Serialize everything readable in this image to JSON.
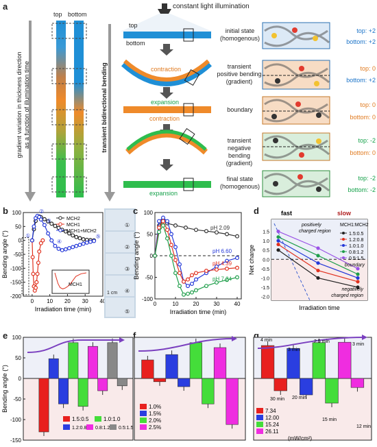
{
  "panel_a": {
    "label": "a",
    "strip_top": "top",
    "strip_bottom": "bottom",
    "left_axis": "gradient variation in thickness direction as a function of illumination time",
    "left_axis_line1": "gradient variation in thickness direction",
    "left_axis_line2": "as a function of illumination time",
    "mid_axis": "transient bidirectional bending",
    "light": "constant light illumination",
    "film_top": "top",
    "film_bottom": "bottom",
    "contraction": "contraction",
    "expansion": "expansion",
    "states": [
      {
        "name1": "initial state",
        "name2": "(homogenous)",
        "top": "top: +2",
        "bottom": "bottom: +2"
      },
      {
        "name1": "transient positive bending",
        "name2": "(gradient)",
        "top": "top: 0",
        "bottom": "bottom: +2"
      },
      {
        "name1": "boundary",
        "name2": "",
        "top": "top: 0",
        "bottom": "bottom: 0"
      },
      {
        "name1": "transient negative bending",
        "name2": "(gradient)",
        "top": "top: -2",
        "bottom": "bottom: 0"
      },
      {
        "name1": "final state",
        "name2": "(homogenous)",
        "top": "top: -2",
        "bottom": "bottom: -2"
      }
    ],
    "positive_word": "positive",
    "negative_word": "negative",
    "colors": {
      "blue": "#1f8fd6",
      "orange": "#ef8a2a",
      "green": "#2ebd4d"
    }
  },
  "chart_data": [
    {
      "panel": "b",
      "type": "line",
      "xlabel": "Irradiation time (min)",
      "ylabel": "Bending angle (°)",
      "xlim": [
        -5,
        40
      ],
      "ylim": [
        -200,
        100
      ],
      "xticks": [
        "0",
        "10",
        "20",
        "30",
        "40"
      ],
      "yticks": [
        "100",
        "50",
        "0",
        "-50",
        "-100",
        "-150",
        "-200"
      ],
      "series": [
        {
          "name": "MCH2",
          "color": "#222222",
          "x": [
            0,
            1,
            2,
            3,
            4,
            5,
            7,
            9,
            11,
            13,
            15,
            17,
            19,
            21,
            23,
            25,
            27,
            29,
            31,
            33,
            35
          ],
          "y": [
            0,
            40,
            70,
            85,
            86,
            83,
            76,
            68,
            60,
            52,
            45,
            38,
            32,
            25,
            18,
            12,
            8,
            4,
            2,
            1,
            0
          ]
        },
        {
          "name": "MCH1",
          "color": "#e0301e",
          "x": [
            0,
            0.3,
            0.6,
            1,
            1.5,
            2,
            2.5,
            3,
            3.5,
            4,
            5,
            6
          ],
          "y": [
            0,
            -60,
            -120,
            -165,
            -180,
            -170,
            -150,
            -120,
            -80,
            -40,
            -10,
            0
          ]
        },
        {
          "name": "MCH1+MCH2",
          "color": "#2438d8",
          "x": [
            0,
            1,
            2,
            3,
            4,
            5,
            7,
            9,
            11,
            13,
            15,
            17,
            19,
            21,
            23,
            25,
            27,
            29,
            31,
            33,
            35
          ],
          "y": [
            0,
            50,
            80,
            88,
            84,
            75,
            55,
            25,
            0,
            -20,
            -30,
            -35,
            -32,
            -28,
            -24,
            -20,
            -16,
            -12,
            -8,
            -5,
            -2
          ]
        }
      ],
      "markers": [
        "①",
        "②",
        "③",
        "④",
        "⑤"
      ],
      "inset": {
        "label": "MCH1",
        "xticks": [
          "0",
          "2",
          "4"
        ],
        "yticks": [
          "0",
          "-100",
          "-200"
        ]
      },
      "photo_labels": [
        "①",
        "②",
        "③",
        "④",
        "⑤"
      ],
      "scale_bar": "1 cm"
    },
    {
      "panel": "c",
      "type": "line",
      "xlabel": "Irradiation time (min)",
      "ylabel": "Bending angle (°)",
      "xlim": [
        0,
        42
      ],
      "ylim": [
        -100,
        100
      ],
      "xticks": [
        "0",
        "10",
        "20",
        "30",
        "40"
      ],
      "yticks": [
        "100",
        "50",
        "0",
        "-50",
        "-100"
      ],
      "series": [
        {
          "name": "pH 2.09",
          "color": "#333333",
          "x": [
            0,
            2,
            4,
            6,
            10,
            15,
            20,
            25,
            30,
            35,
            40
          ],
          "y": [
            0,
            70,
            82,
            75,
            70,
            65,
            60,
            57,
            54,
            50,
            45
          ]
        },
        {
          "name": "pH 6.60",
          "color": "#2438d8",
          "x": [
            0,
            2,
            4,
            6,
            8,
            10,
            12,
            14,
            16,
            18,
            20,
            25,
            30,
            35,
            40
          ],
          "y": [
            0,
            80,
            88,
            80,
            50,
            20,
            -20,
            -60,
            -70,
            -65,
            -55,
            -40,
            -25,
            -12,
            -5
          ]
        },
        {
          "name": "pH 4.39",
          "color": "#e0301e",
          "x": [
            0,
            2,
            4,
            6,
            8,
            10,
            12,
            14,
            16,
            18,
            20,
            25,
            30,
            35,
            40
          ],
          "y": [
            0,
            65,
            80,
            60,
            25,
            -10,
            -40,
            -60,
            -55,
            -45,
            -40,
            -35,
            -32,
            -30,
            -28
          ]
        },
        {
          "name": "pH 7.24",
          "color": "#1e9e4a",
          "x": [
            0,
            2,
            4,
            6,
            8,
            10,
            12,
            14,
            16,
            18,
            20,
            25,
            30,
            35,
            40
          ],
          "y": [
            0,
            55,
            70,
            40,
            0,
            -40,
            -70,
            -90,
            -88,
            -85,
            -80,
            -70,
            -62,
            -56,
            -50
          ]
        }
      ]
    },
    {
      "panel": "d",
      "type": "line",
      "xlabel": "Irradiation time",
      "ylabel": "Net charge",
      "ylim": [
        -2,
        2
      ],
      "yticks": [
        "1.5",
        "1.0",
        "0.5",
        "0.0",
        "-0.5",
        "-1.0",
        "-1.5",
        "-2.0"
      ],
      "fast": "fast",
      "slow": "slow",
      "legend_title": "MCH1:MCH2",
      "annot_pos": "positively charged region",
      "annot_pos1": "positively",
      "annot_pos2": "charged region",
      "annot_neg": "negatively charged region",
      "annot_neg1": "negatively",
      "annot_neg2": "charged region",
      "annot_boundary": "boundary",
      "series": [
        {
          "name": "1.5:0.5",
          "color": "#222222",
          "x": [
            0,
            1,
            2
          ],
          "y": [
            0.5,
            -1.0,
            -1.5
          ]
        },
        {
          "name": "1.2:0.8",
          "color": "#e0301e",
          "x": [
            0,
            1,
            2
          ],
          "y": [
            0.8,
            -0.6,
            -1.2
          ]
        },
        {
          "name": "1.0:1.0",
          "color": "#2438d8",
          "x": [
            0,
            1,
            2
          ],
          "y": [
            1.0,
            -0.2,
            -1.0
          ]
        },
        {
          "name": "0.8:1.2",
          "color": "#1e9e4a",
          "x": [
            0,
            1,
            2
          ],
          "y": [
            1.2,
            0.2,
            -0.8
          ]
        },
        {
          "name": "0.5:1.5",
          "color": "#9a52e6",
          "x": [
            0,
            1,
            2
          ],
          "y": [
            1.5,
            0.6,
            -0.5
          ]
        }
      ]
    },
    {
      "panel": "e",
      "type": "bar",
      "ylabel": "Bending angle (°)",
      "ylim": [
        -150,
        100
      ],
      "yticks": [
        "100",
        "50",
        "0",
        "-50",
        "-100",
        "-150"
      ],
      "series": [
        {
          "name": "1.5:0.5",
          "color": "#e8201e",
          "values": [
            0,
            -130
          ]
        },
        {
          "name": "1.2:0.8",
          "color": "#2a3ee0",
          "values": [
            48,
            -62
          ]
        },
        {
          "name": "1.0:1.0",
          "color": "#44dd3a",
          "values": [
            87,
            -68
          ]
        },
        {
          "name": "0.8:1.2",
          "color": "#ef2de0",
          "values": [
            78,
            -30
          ]
        },
        {
          "name": "0.5:1.5",
          "color": "#888888",
          "values": [
            87,
            -18
          ]
        }
      ]
    },
    {
      "panel": "f",
      "type": "bar",
      "ylabel": "Bending angle (°)",
      "ylim": [
        -150,
        100
      ],
      "series": [
        {
          "name": "1.0%",
          "color": "#e8201e",
          "values": [
            45,
            -8
          ]
        },
        {
          "name": "1.5%",
          "color": "#2a3ee0",
          "values": [
            58,
            -20
          ]
        },
        {
          "name": "2.0%",
          "color": "#44dd3a",
          "values": [
            87,
            -62
          ]
        },
        {
          "name": "2.5%",
          "color": "#ef2de0",
          "values": [
            75,
            -112
          ]
        }
      ]
    },
    {
      "panel": "g",
      "type": "bar",
      "ylabel": "Bending angle (°)",
      "ylim": [
        -150,
        100
      ],
      "unit_note": "(mW/cm²)",
      "time_labels": [
        "4 min",
        "30 min",
        "3 min",
        "20 min",
        "2.5 min",
        "15 min",
        "3 min",
        "12 min"
      ],
      "series": [
        {
          "name": "7.34",
          "color": "#e8201e",
          "values": [
            80,
            -30
          ]
        },
        {
          "name": "12.00",
          "color": "#2a3ee0",
          "values": [
            73,
            -40
          ]
        },
        {
          "name": "15.24",
          "color": "#44dd3a",
          "values": [
            87,
            -60
          ]
        },
        {
          "name": "26.11",
          "color": "#ef2de0",
          "values": [
            88,
            -22
          ]
        }
      ]
    }
  ]
}
